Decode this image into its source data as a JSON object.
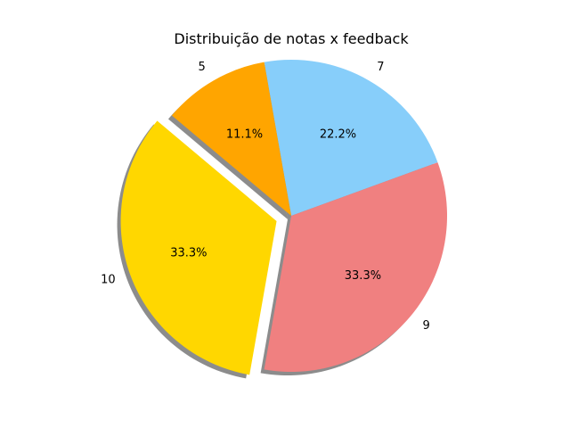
{
  "chart_data": {
    "type": "pie",
    "title": "Distribuição de notas x feedback",
    "slices": [
      {
        "label": "7",
        "value": 22.2,
        "pct_label": "22.2%",
        "color": "#87CEFA",
        "explode": false
      },
      {
        "label": "5",
        "value": 11.1,
        "pct_label": "11.1%",
        "color": "#FFA500",
        "explode": false
      },
      {
        "label": "10",
        "value": 33.3,
        "pct_label": "33.3%",
        "color": "#FFD700",
        "explode": true
      },
      {
        "label": "9",
        "value": 33.3,
        "pct_label": "33.3%",
        "color": "#F08080",
        "explode": false
      }
    ],
    "start_angle_deg": 20,
    "direction": "counterclockwise",
    "shadow": true,
    "legend": false
  }
}
